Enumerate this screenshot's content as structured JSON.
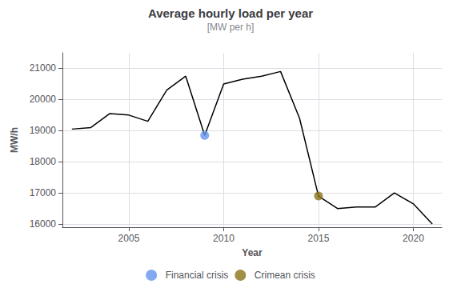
{
  "chart_data": {
    "type": "line",
    "title": "Average hourly load per year",
    "subtitle": "[MW per h]",
    "xlabel": "Year",
    "ylabel": "MW/h",
    "series": [
      {
        "type": "line",
        "color": "#000000",
        "x": [
          2002,
          2003,
          2004,
          2005,
          2006,
          2007,
          2008,
          2009,
          2010,
          2011,
          2012,
          2013,
          2014,
          2015,
          2016,
          2017,
          2018,
          2019,
          2020,
          2021
        ],
        "values": [
          19050,
          19100,
          19550,
          19500,
          19300,
          20300,
          20750,
          18850,
          20500,
          20650,
          20750,
          20900,
          19400,
          16900,
          16500,
          16550,
          16550,
          17000,
          16650,
          16000
        ]
      },
      {
        "name": "Financial crisis",
        "type": "scatter",
        "color": "#6495ED",
        "marker": "circle",
        "x": [
          2009
        ],
        "values": [
          18850
        ]
      },
      {
        "name": "Crimean crisis",
        "type": "scatter",
        "color": "#8B7318",
        "marker": "circle",
        "x": [
          2015
        ],
        "values": [
          16900
        ]
      }
    ],
    "xlim": [
      2001.5,
      2021.5
    ],
    "xticks": [
      2005,
      2010,
      2015,
      2020
    ],
    "ylim": [
      15900,
      21500
    ],
    "yticks": [
      16000,
      17000,
      18000,
      19000,
      20000,
      21000
    ],
    "grid": true,
    "legend": "bottom"
  }
}
